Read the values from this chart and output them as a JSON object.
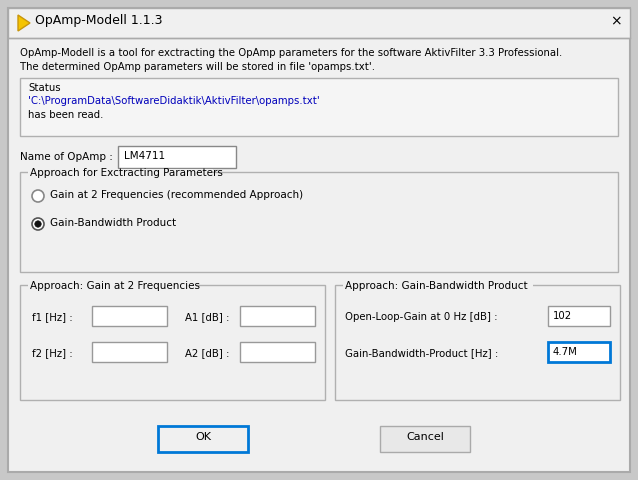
{
  "title": "OpAmp-Modell 1.1.3",
  "bg_color": "#f0f0f0",
  "outer_bg": "#c8c8c8",
  "text_color": "#000000",
  "desc_line1": "OpAmp-Modell is a tool for exctracting the OpAmp parameters for the software AktivFilter 3.3 Professional.",
  "desc_line2": "The determined OpAmp parameters will be stored in file 'opamps.txt'.",
  "status_label": "Status",
  "status_line1": "'C:\\ProgramData\\SoftwareDidaktik\\AktivFilter\\opamps.txt'",
  "status_line2": "has been read.",
  "name_label": "Name of OpAmp :",
  "name_value": "LM4711",
  "approach_group_label": "Approach for Exctracting Parameters",
  "radio1_label": "Gain at 2 Frequencies (recommended Approach)",
  "radio2_label": "Gain-Bandwidth Product",
  "left_group_label": "Approach: Gain at 2 Frequencies",
  "f1_label": "f1 [Hz] :",
  "f2_label": "f2 [Hz] :",
  "a1_label": "A1 [dB] :",
  "a2_label": "A2 [dB] :",
  "right_group_label": "Approach: Gain-Bandwidth Product",
  "open_loop_label": "Open-Loop-Gain at 0 Hz [dB] :",
  "open_loop_value": "102",
  "gbp_label": "Gain-Bandwidth-Product [Hz] :",
  "gbp_value": "4.7M",
  "ok_label": "OK",
  "cancel_label": "Cancel",
  "highlight_color": "#0078d7",
  "input_bg": "#ffffff",
  "dialog_border": "#aaaaaa",
  "group_border": "#b0b0b0",
  "status_bg": "#f5f5f5",
  "status_text_color": "#0000bb"
}
